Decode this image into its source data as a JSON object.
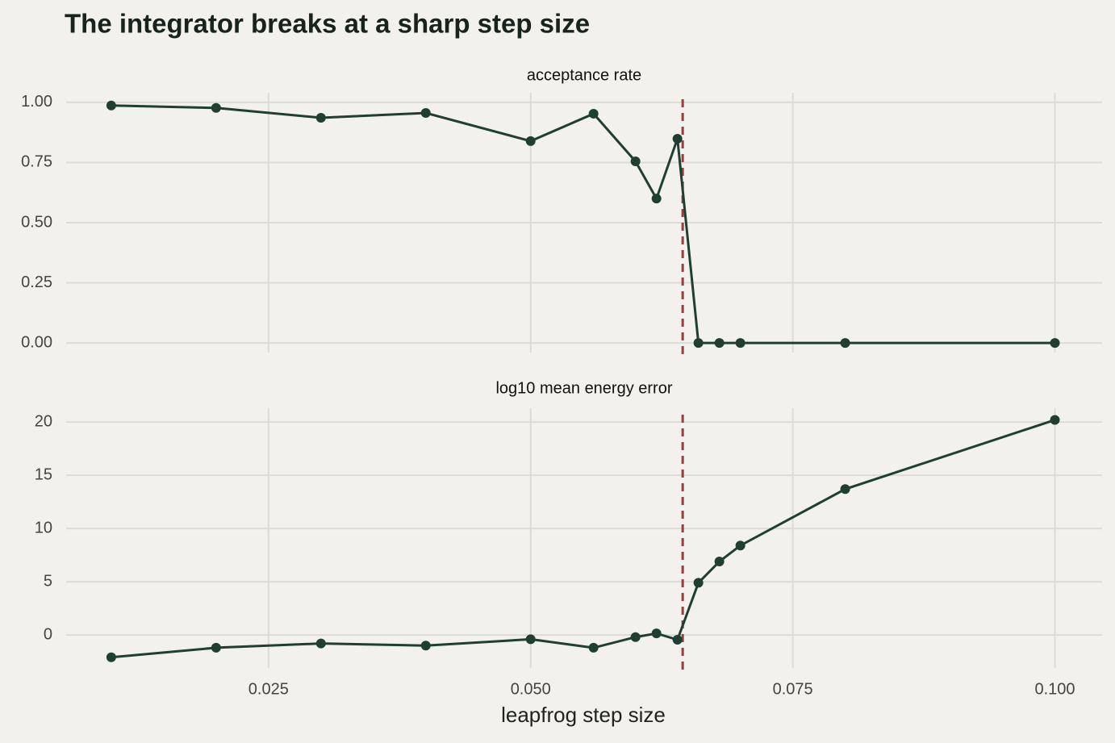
{
  "title": "The integrator breaks at a sharp step size",
  "x_label": "leapfrog step size",
  "chart_data": [
    {
      "type": "line",
      "subtitle": "acceptance rate",
      "color": "#1f4030",
      "vline": 0.0645,
      "vline_color": "#a0393a",
      "x": [
        0.01,
        0.02,
        0.03,
        0.04,
        0.05,
        0.056,
        0.06,
        0.062,
        0.064,
        0.066,
        0.068,
        0.07,
        0.08,
        0.1
      ],
      "values": [
        0.987,
        0.977,
        0.936,
        0.956,
        0.839,
        0.953,
        0.755,
        0.6,
        0.849,
        0,
        0,
        0,
        0,
        0
      ],
      "xlim": [
        0.0057,
        0.1045
      ],
      "xticks": [
        0.025,
        {
          "value": 0.05,
          "label": "0.050"
        },
        0.075,
        {
          "value": 0.1,
          "label": "0.100"
        }
      ],
      "ylim": [
        -0.04,
        1.04
      ],
      "yticks": [
        {
          "value": 0,
          "label": "0.00"
        },
        0.25,
        {
          "value": 0.5,
          "label": "0.50"
        },
        0.75,
        {
          "value": 1,
          "label": "1.00"
        }
      ],
      "grid": true
    },
    {
      "type": "line",
      "subtitle": "log10 mean energy error",
      "color": "#1f4030",
      "vline": 0.0645,
      "vline_color": "#a0393a",
      "x": [
        0.01,
        0.02,
        0.03,
        0.04,
        0.05,
        0.056,
        0.06,
        0.062,
        0.064,
        0.066,
        0.068,
        0.07,
        0.08,
        0.1
      ],
      "values": [
        -2.1,
        -1.2,
        -0.8,
        -1.0,
        -0.4,
        -1.2,
        -0.2,
        0.15,
        -0.45,
        4.9,
        6.9,
        8.4,
        13.7,
        20.2
      ],
      "xlim": [
        0.0057,
        0.1045
      ],
      "xticks": [
        0.025,
        {
          "value": 0.05,
          "label": "0.050"
        },
        0.075,
        {
          "value": 0.1,
          "label": "0.100"
        }
      ],
      "ylim": [
        -3.1,
        21.3
      ],
      "yticks": [
        0,
        5,
        10,
        15,
        20
      ],
      "grid": true
    }
  ]
}
